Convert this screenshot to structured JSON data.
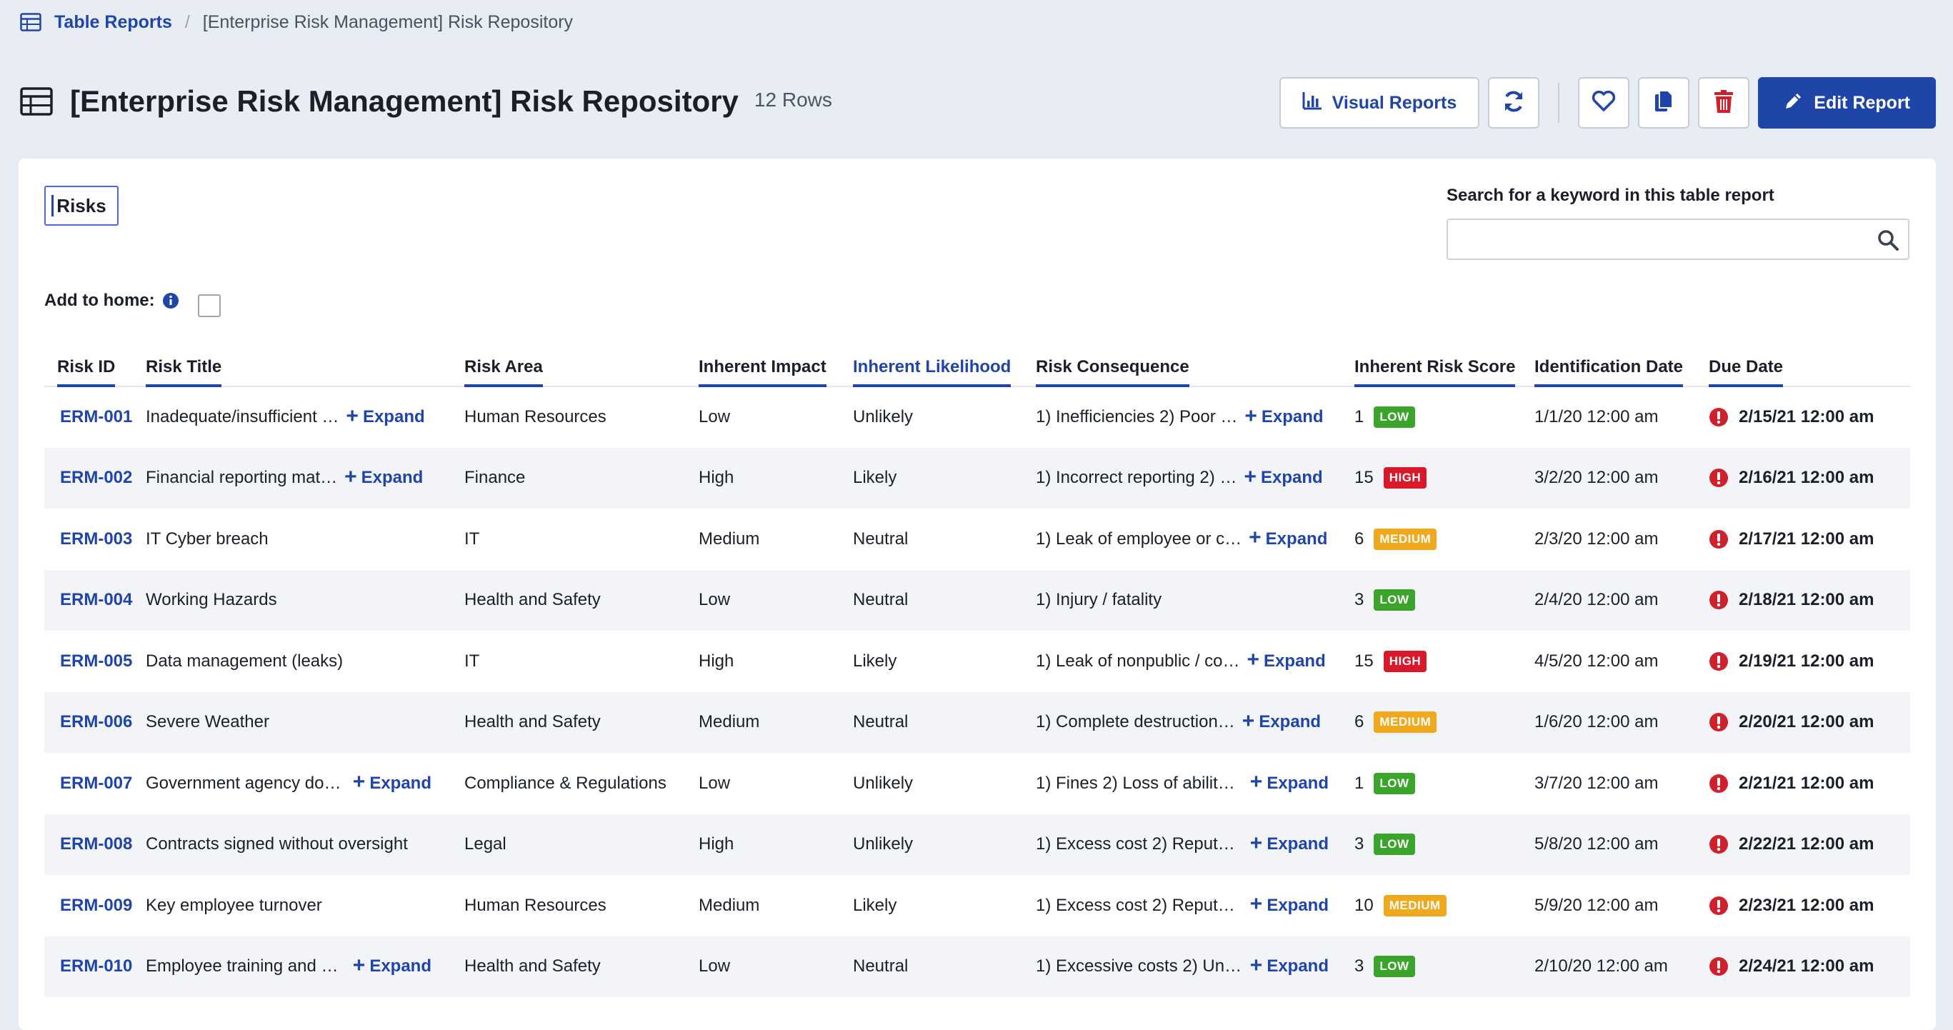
{
  "breadcrumb": {
    "root": "Table Reports",
    "separator": "/",
    "current": "[Enterprise Risk Management] Risk Repository"
  },
  "header": {
    "title": "[Enterprise Risk Management] Risk Repository",
    "row_count": "12 Rows"
  },
  "toolbar": {
    "visual_reports": "Visual Reports",
    "edit_report": "Edit Report"
  },
  "tabs": [
    {
      "label": "Risks"
    }
  ],
  "search": {
    "label": "Search for a keyword in this table report",
    "value": "",
    "placeholder": ""
  },
  "add_to_home": {
    "label": "Add to home:",
    "checked": false
  },
  "colors": {
    "accent": "#1f45a8",
    "low": "#3aa52a",
    "high": "#d9182a",
    "medium": "#f0a81c",
    "alert": "#d0202c"
  },
  "table": {
    "columns": [
      "Risk ID",
      "Risk Title",
      "Risk Area",
      "Inherent Impact",
      "Inherent Likelihood",
      "Risk Consequence",
      "Inherent Risk Score",
      "Identification Date",
      "Due Date"
    ],
    "active_column": "Inherent Likelihood",
    "expand_label": "Expand",
    "rows": [
      {
        "id": "ERM-001",
        "title": "Inadequate/insufficient …",
        "title_expand": true,
        "area": "Human Resources",
        "impact": "Low",
        "likelihood": "Unlikely",
        "consequence": "1) Inefficiencies 2) Poor …",
        "cons_expand": true,
        "score": "1",
        "level": "LOW",
        "level_class": "low",
        "ident": "1/1/20 12:00 am",
        "due": "2/15/21 12:00 am"
      },
      {
        "id": "ERM-002",
        "title": "Financial reporting mat…",
        "title_expand": true,
        "area": "Finance",
        "impact": "High",
        "likelihood": "Likely",
        "consequence": "1) Incorrect reporting 2) …",
        "cons_expand": true,
        "score": "15",
        "level": "HIGH",
        "level_class": "high",
        "ident": "3/2/20 12:00 am",
        "due": "2/16/21 12:00 am"
      },
      {
        "id": "ERM-003",
        "title": "IT Cyber breach",
        "title_expand": false,
        "area": "IT",
        "impact": "Medium",
        "likelihood": "Neutral",
        "consequence": "1) Leak of employee or c…",
        "cons_expand": true,
        "score": "6",
        "level": "MEDIUM",
        "level_class": "medium",
        "ident": "2/3/20 12:00 am",
        "due": "2/17/21 12:00 am"
      },
      {
        "id": "ERM-004",
        "title": "Working Hazards",
        "title_expand": false,
        "area": "Health and Safety",
        "impact": "Low",
        "likelihood": "Neutral",
        "consequence": "1) Injury / fatality",
        "cons_expand": false,
        "score": "3",
        "level": "LOW",
        "level_class": "low",
        "ident": "2/4/20 12:00 am",
        "due": "2/18/21 12:00 am"
      },
      {
        "id": "ERM-005",
        "title": "Data management (leaks)",
        "title_expand": false,
        "area": "IT",
        "impact": "High",
        "likelihood": "Likely",
        "consequence": "1) Leak of nonpublic / co…",
        "cons_expand": true,
        "score": "15",
        "level": "HIGH",
        "level_class": "high",
        "ident": "4/5/20 12:00 am",
        "due": "2/19/21 12:00 am"
      },
      {
        "id": "ERM-006",
        "title": "Severe Weather",
        "title_expand": false,
        "area": "Health and Safety",
        "impact": "Medium",
        "likelihood": "Neutral",
        "consequence": "1) Complete destruction…",
        "cons_expand": true,
        "score": "6",
        "level": "MEDIUM",
        "level_class": "medium",
        "ident": "1/6/20 12:00 am",
        "due": "2/20/21 12:00 am"
      },
      {
        "id": "ERM-007",
        "title": "Government agency doc…",
        "title_expand": true,
        "area": "Compliance & Regulations",
        "impact": "Low",
        "likelihood": "Unlikely",
        "consequence": "1) Fines 2) Loss of ability…",
        "cons_expand": true,
        "score": "1",
        "level": "LOW",
        "level_class": "low",
        "ident": "3/7/20 12:00 am",
        "due": "2/21/21 12:00 am"
      },
      {
        "id": "ERM-008",
        "title": "Contracts signed without oversight",
        "title_expand": false,
        "area": "Legal",
        "impact": "High",
        "likelihood": "Unlikely",
        "consequence": "1) Excess cost 2) Reputat…",
        "cons_expand": true,
        "score": "3",
        "level": "LOW",
        "level_class": "low",
        "ident": "5/8/20 12:00 am",
        "due": "2/22/21 12:00 am"
      },
      {
        "id": "ERM-009",
        "title": "Key employee turnover",
        "title_expand": false,
        "area": "Human Resources",
        "impact": "Medium",
        "likelihood": "Likely",
        "consequence": "1) Excess cost 2) Reputat…",
        "cons_expand": true,
        "score": "10",
        "level": "MEDIUM",
        "level_class": "medium",
        "ident": "5/9/20 12:00 am",
        "due": "2/23/21 12:00 am"
      },
      {
        "id": "ERM-010",
        "title": "Employee training and n…",
        "title_expand": true,
        "area": "Health and Safety",
        "impact": "Low",
        "likelihood": "Neutral",
        "consequence": "1) Excessive costs 2) Uns…",
        "cons_expand": true,
        "score": "3",
        "level": "LOW",
        "level_class": "low",
        "ident": "2/10/20 12:00 am",
        "due": "2/24/21 12:00 am"
      }
    ]
  }
}
